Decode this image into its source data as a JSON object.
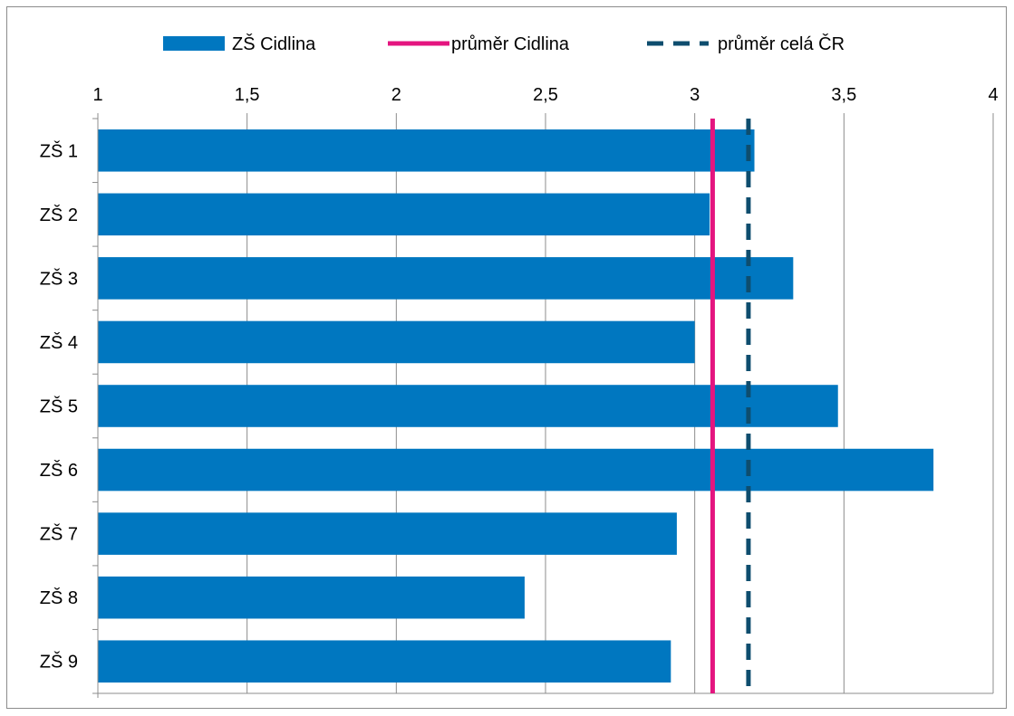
{
  "chart_data": {
    "type": "bar",
    "orientation": "horizontal",
    "categories": [
      "ZŠ 1",
      "ZŠ 2",
      "ZŠ 3",
      "ZŠ 4",
      "ZŠ 5",
      "ZŠ 6",
      "ZŠ 7",
      "ZŠ 8",
      "ZŠ 9"
    ],
    "series": [
      {
        "name": "ZŠ Cidlina",
        "values": [
          3.2,
          3.05,
          3.33,
          3.0,
          3.48,
          3.8,
          2.94,
          2.43,
          2.92
        ],
        "color": "#0077c0"
      }
    ],
    "reference_lines": [
      {
        "name": "průměr Cidlina",
        "value": 3.06,
        "color": "#e4157f",
        "style": "solid"
      },
      {
        "name": "průměr celá ČR",
        "value": 3.18,
        "color": "#0e4d6e",
        "style": "dashed"
      }
    ],
    "x_ticks": [
      "1",
      "1,5",
      "2",
      "2,5",
      "3",
      "3,5",
      "4"
    ],
    "x_tick_values": [
      1,
      1.5,
      2,
      2.5,
      3,
      3.5,
      4
    ],
    "xlim": [
      1,
      4
    ],
    "x_axis_position": "top",
    "gridlines": "vertical",
    "legend_position": "top"
  }
}
